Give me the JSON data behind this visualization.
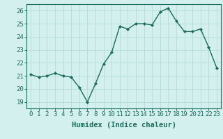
{
  "x": [
    0,
    1,
    2,
    3,
    4,
    5,
    6,
    7,
    8,
    9,
    10,
    11,
    12,
    13,
    14,
    15,
    16,
    17,
    18,
    19,
    20,
    21,
    22,
    23
  ],
  "y": [
    21.1,
    20.9,
    21.0,
    21.2,
    21.0,
    20.9,
    20.1,
    19.0,
    20.4,
    21.9,
    22.8,
    24.8,
    24.6,
    25.0,
    25.0,
    24.9,
    25.9,
    26.2,
    25.2,
    24.4,
    24.4,
    24.6,
    23.2,
    21.6
  ],
  "line_color": "#1a6b5a",
  "marker_color": "#1a6b5a",
  "bg_color": "#d4f0ee",
  "grid_color": "#b8deda",
  "axis_color": "#1a6b5a",
  "xlabel": "Humidex (Indice chaleur)",
  "xlim": [
    -0.5,
    23.5
  ],
  "ylim": [
    18.5,
    26.5
  ],
  "yticks": [
    19,
    20,
    21,
    22,
    23,
    24,
    25,
    26
  ],
  "xticks": [
    0,
    1,
    2,
    3,
    4,
    5,
    6,
    7,
    8,
    9,
    10,
    11,
    12,
    13,
    14,
    15,
    16,
    17,
    18,
    19,
    20,
    21,
    22,
    23
  ],
  "xlabel_fontsize": 7.5,
  "tick_fontsize": 6.5
}
